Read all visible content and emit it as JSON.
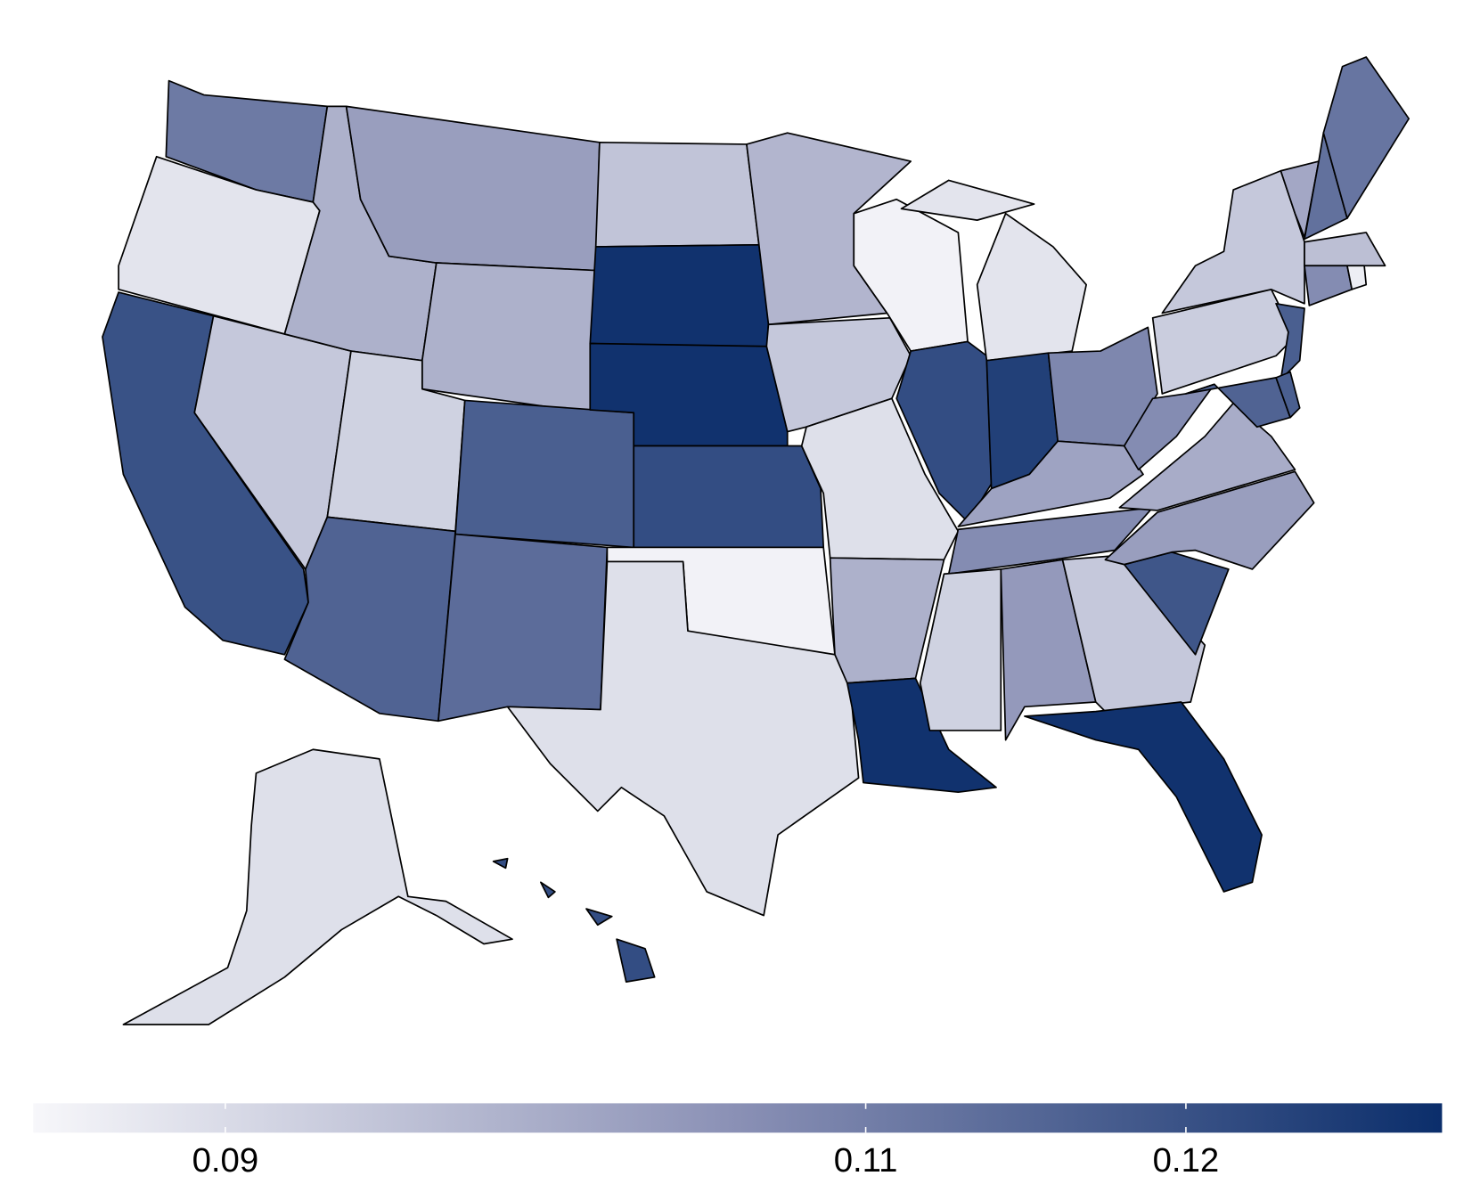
{
  "chart_data": {
    "type": "choropleth",
    "values": [
      0.111,
      0.088,
      0.12,
      0.094,
      0.099,
      0.103,
      0.099,
      0.092,
      0.116,
      0.117,
      0.114,
      0.095,
      0.127,
      0.127,
      0.121,
      0.085,
      0.089,
      0.098,
      0.094,
      0.089,
      0.099,
      0.127,
      0.085,
      0.121,
      0.088,
      0.124,
      0.108,
      0.102,
      0.107,
      0.092,
      0.104,
      0.094,
      0.127,
      0.119,
      0.103,
      0.1,
      0.107,
      0.093,
      0.094,
      0.101,
      0.113,
      0.112,
      0.096,
      0.107,
      0.086,
      0.117,
      0.116,
      0.117,
      0.089,
      0.121
    ],
    "colorscale": [
      "#f7f7fa",
      "#8a90b5",
      "#0b2e6b"
    ],
    "clim": [
      0.084,
      0.128
    ],
    "ticks": [
      0.09,
      0.11,
      0.12
    ]
  }
}
